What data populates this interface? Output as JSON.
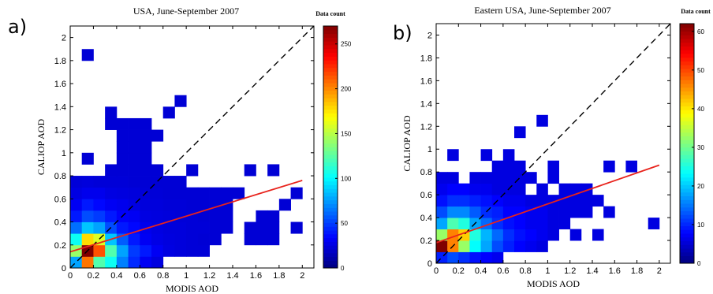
{
  "chart_data": [
    {
      "type": "heatmap",
      "panel_label": "a)",
      "title": "USA, June-September 2007",
      "xlabel": "MODIS AOD",
      "ylabel": "CALIOP AOD",
      "xlim": [
        0,
        2.1
      ],
      "ylim": [
        0,
        2.1
      ],
      "xticks": [
        "0",
        "0.2",
        "0.4",
        "0.6",
        "0.8",
        "1",
        "1.2",
        "1.4",
        "1.6",
        "1.8",
        "2"
      ],
      "yticks": [
        "0",
        "0.2",
        "0.4",
        "0.6",
        "0.8",
        "1",
        "1.2",
        "1.4",
        "1.6",
        "1.8",
        "2"
      ],
      "bin_size": 0.1,
      "colorbar": {
        "label": "Data count",
        "min": 0,
        "max": 270,
        "ticks": [
          "0",
          "50",
          "100",
          "150",
          "200",
          "250"
        ]
      },
      "cells": [
        [
          0.05,
          0.05,
          60
        ],
        [
          0.15,
          0.05,
          200
        ],
        [
          0.25,
          0.05,
          110
        ],
        [
          0.35,
          0.05,
          90
        ],
        [
          0.45,
          0.05,
          50
        ],
        [
          0.55,
          0.05,
          25
        ],
        [
          0.65,
          0.05,
          10
        ],
        [
          0.75,
          0.05,
          4
        ],
        [
          0.05,
          0.15,
          130
        ],
        [
          0.15,
          0.15,
          270
        ],
        [
          0.25,
          0.15,
          210
        ],
        [
          0.35,
          0.15,
          110
        ],
        [
          0.45,
          0.15,
          60
        ],
        [
          0.55,
          0.15,
          30
        ],
        [
          0.65,
          0.15,
          20
        ],
        [
          0.75,
          0.15,
          10
        ],
        [
          0.85,
          0.15,
          5
        ],
        [
          0.95,
          0.15,
          3
        ],
        [
          1.05,
          0.15,
          2
        ],
        [
          1.15,
          0.15,
          2
        ],
        [
          0.05,
          0.25,
          90
        ],
        [
          0.15,
          0.25,
          170
        ],
        [
          0.25,
          0.25,
          150
        ],
        [
          0.35,
          0.25,
          70
        ],
        [
          0.45,
          0.25,
          40
        ],
        [
          0.55,
          0.25,
          20
        ],
        [
          0.65,
          0.25,
          10
        ],
        [
          0.75,
          0.25,
          6
        ],
        [
          0.85,
          0.25,
          4
        ],
        [
          0.95,
          0.25,
          3
        ],
        [
          1.05,
          0.25,
          2
        ],
        [
          1.15,
          0.25,
          1
        ],
        [
          1.25,
          0.25,
          1
        ],
        [
          1.55,
          0.25,
          1
        ],
        [
          1.65,
          0.25,
          1
        ],
        [
          1.75,
          0.25,
          1
        ],
        [
          0.05,
          0.35,
          45
        ],
        [
          0.15,
          0.35,
          70
        ],
        [
          0.25,
          0.35,
          60
        ],
        [
          0.35,
          0.35,
          35
        ],
        [
          0.45,
          0.35,
          20
        ],
        [
          0.55,
          0.35,
          15
        ],
        [
          0.65,
          0.35,
          8
        ],
        [
          0.75,
          0.35,
          5
        ],
        [
          0.85,
          0.35,
          3
        ],
        [
          0.95,
          0.35,
          3
        ],
        [
          1.05,
          0.35,
          2
        ],
        [
          1.15,
          0.35,
          2
        ],
        [
          1.25,
          0.35,
          1
        ],
        [
          1.35,
          0.35,
          1
        ],
        [
          1.55,
          0.35,
          1
        ],
        [
          1.65,
          0.35,
          1
        ],
        [
          1.75,
          0.35,
          1
        ],
        [
          1.95,
          0.35,
          1
        ],
        [
          0.05,
          0.45,
          20
        ],
        [
          0.15,
          0.45,
          35
        ],
        [
          0.25,
          0.45,
          30
        ],
        [
          0.35,
          0.45,
          20
        ],
        [
          0.45,
          0.45,
          12
        ],
        [
          0.55,
          0.45,
          10
        ],
        [
          0.65,
          0.45,
          5
        ],
        [
          0.75,
          0.45,
          4
        ],
        [
          0.85,
          0.45,
          3
        ],
        [
          0.95,
          0.45,
          2
        ],
        [
          1.05,
          0.45,
          2
        ],
        [
          1.15,
          0.45,
          1
        ],
        [
          1.25,
          0.45,
          1
        ],
        [
          1.35,
          0.45,
          1
        ],
        [
          1.65,
          0.45,
          1
        ],
        [
          1.75,
          0.45,
          1
        ],
        [
          0.05,
          0.55,
          10
        ],
        [
          0.15,
          0.55,
          20
        ],
        [
          0.25,
          0.55,
          15
        ],
        [
          0.35,
          0.55,
          10
        ],
        [
          0.45,
          0.55,
          8
        ],
        [
          0.55,
          0.55,
          5
        ],
        [
          0.65,
          0.55,
          3
        ],
        [
          0.75,
          0.55,
          3
        ],
        [
          0.85,
          0.55,
          2
        ],
        [
          0.95,
          0.55,
          2
        ],
        [
          1.05,
          0.55,
          1
        ],
        [
          1.15,
          0.55,
          1
        ],
        [
          1.25,
          0.55,
          1
        ],
        [
          1.35,
          0.55,
          1
        ],
        [
          1.85,
          0.55,
          1
        ],
        [
          0.05,
          0.65,
          5
        ],
        [
          0.15,
          0.65,
          8
        ],
        [
          0.25,
          0.65,
          8
        ],
        [
          0.35,
          0.65,
          5
        ],
        [
          0.45,
          0.65,
          4
        ],
        [
          0.55,
          0.65,
          3
        ],
        [
          0.65,
          0.65,
          2
        ],
        [
          0.75,
          0.65,
          2
        ],
        [
          0.85,
          0.65,
          1
        ],
        [
          0.95,
          0.65,
          1
        ],
        [
          1.05,
          0.65,
          1
        ],
        [
          1.15,
          0.65,
          1
        ],
        [
          1.25,
          0.65,
          1
        ],
        [
          1.35,
          0.65,
          1
        ],
        [
          1.45,
          0.65,
          1
        ],
        [
          1.95,
          0.65,
          1
        ],
        [
          0.05,
          0.75,
          2
        ],
        [
          0.15,
          0.75,
          3
        ],
        [
          0.25,
          0.75,
          2
        ],
        [
          0.35,
          0.75,
          2
        ],
        [
          0.45,
          0.75,
          2
        ],
        [
          0.55,
          0.75,
          1
        ],
        [
          0.65,
          0.75,
          1
        ],
        [
          0.75,
          0.75,
          1
        ],
        [
          0.85,
          0.75,
          1
        ],
        [
          0.95,
          0.75,
          1
        ],
        [
          0.35,
          0.85,
          1
        ],
        [
          0.45,
          0.85,
          1
        ],
        [
          0.55,
          0.85,
          1
        ],
        [
          0.65,
          0.85,
          1
        ],
        [
          0.75,
          0.85,
          1
        ],
        [
          1.05,
          0.85,
          1
        ],
        [
          1.55,
          0.85,
          1
        ],
        [
          1.75,
          0.85,
          1
        ],
        [
          0.15,
          0.95,
          1
        ],
        [
          0.45,
          0.95,
          1
        ],
        [
          0.55,
          0.95,
          1
        ],
        [
          0.65,
          0.95,
          1
        ],
        [
          0.45,
          1.05,
          1
        ],
        [
          0.55,
          1.05,
          1
        ],
        [
          0.65,
          1.05,
          1
        ],
        [
          0.45,
          1.15,
          1
        ],
        [
          0.55,
          1.15,
          1
        ],
        [
          0.65,
          1.15,
          1
        ],
        [
          0.75,
          1.15,
          1
        ],
        [
          0.35,
          1.25,
          1
        ],
        [
          0.45,
          1.25,
          1
        ],
        [
          0.55,
          1.25,
          1
        ],
        [
          0.65,
          1.25,
          1
        ],
        [
          0.35,
          1.35,
          1
        ],
        [
          0.85,
          1.35,
          1
        ],
        [
          0.95,
          1.45,
          1
        ],
        [
          0.15,
          1.85,
          1
        ]
      ],
      "reference_line": {
        "style": "dashed",
        "color": "#000000",
        "from": [
          0,
          0
        ],
        "to": [
          2.1,
          2.1
        ]
      },
      "fit_line": {
        "color": "#e8231c",
        "from": [
          0,
          0.14
        ],
        "to": [
          2.0,
          0.76
        ]
      }
    },
    {
      "type": "heatmap",
      "panel_label": "b)",
      "title": "Eastern USA, June-September 2007",
      "xlabel": "MODIS AOD",
      "ylabel": "CALIOP AOD",
      "xlim": [
        0,
        2.1
      ],
      "ylim": [
        0,
        2.1
      ],
      "xticks": [
        "0",
        "0.2",
        "0.4",
        "0.6",
        "0.8",
        "1",
        "1.2",
        "1.4",
        "1.6",
        "1.8",
        "2"
      ],
      "yticks": [
        "0",
        "0.2",
        "0.4",
        "0.6",
        "0.8",
        "1",
        "1.2",
        "1.4",
        "1.6",
        "1.8",
        "2"
      ],
      "bin_size": 0.1,
      "colorbar": {
        "label": "Data count",
        "min": 0,
        "max": 62,
        "ticks": [
          "0",
          "10",
          "20",
          "30",
          "40",
          "50",
          "60"
        ]
      },
      "cells": [
        [
          0.05,
          0.05,
          5
        ],
        [
          0.15,
          0.05,
          8
        ],
        [
          0.25,
          0.05,
          6
        ],
        [
          0.35,
          0.05,
          4
        ],
        [
          0.45,
          0.05,
          3
        ],
        [
          0.55,
          0.05,
          2
        ],
        [
          0.05,
          0.15,
          62
        ],
        [
          0.15,
          0.15,
          45
        ],
        [
          0.25,
          0.15,
          30
        ],
        [
          0.35,
          0.15,
          20
        ],
        [
          0.45,
          0.15,
          14
        ],
        [
          0.55,
          0.15,
          8
        ],
        [
          0.65,
          0.15,
          5
        ],
        [
          0.75,
          0.15,
          3
        ],
        [
          0.85,
          0.15,
          2
        ],
        [
          0.95,
          0.15,
          1
        ],
        [
          0.05,
          0.25,
          30
        ],
        [
          0.15,
          0.25,
          45
        ],
        [
          0.25,
          0.25,
          40
        ],
        [
          0.35,
          0.25,
          22
        ],
        [
          0.45,
          0.25,
          15
        ],
        [
          0.55,
          0.25,
          10
        ],
        [
          0.65,
          0.25,
          6
        ],
        [
          0.75,
          0.25,
          4
        ],
        [
          0.85,
          0.25,
          3
        ],
        [
          0.95,
          0.25,
          2
        ],
        [
          1.05,
          0.25,
          1
        ],
        [
          1.25,
          0.25,
          1
        ],
        [
          1.45,
          0.25,
          1
        ],
        [
          0.05,
          0.35,
          14
        ],
        [
          0.15,
          0.35,
          25
        ],
        [
          0.25,
          0.35,
          22
        ],
        [
          0.35,
          0.35,
          14
        ],
        [
          0.45,
          0.35,
          10
        ],
        [
          0.55,
          0.35,
          6
        ],
        [
          0.65,
          0.35,
          4
        ],
        [
          0.75,
          0.35,
          3
        ],
        [
          0.85,
          0.35,
          2
        ],
        [
          0.95,
          0.35,
          2
        ],
        [
          1.05,
          0.35,
          1
        ],
        [
          1.15,
          0.35,
          1
        ],
        [
          1.95,
          0.35,
          1
        ],
        [
          0.05,
          0.45,
          8
        ],
        [
          0.15,
          0.45,
          12
        ],
        [
          0.25,
          0.45,
          12
        ],
        [
          0.35,
          0.45,
          9
        ],
        [
          0.45,
          0.45,
          6
        ],
        [
          0.55,
          0.45,
          5
        ],
        [
          0.65,
          0.45,
          3
        ],
        [
          0.75,
          0.45,
          3
        ],
        [
          0.85,
          0.45,
          2
        ],
        [
          0.95,
          0.45,
          2
        ],
        [
          1.05,
          0.45,
          1
        ],
        [
          1.15,
          0.45,
          1
        ],
        [
          1.25,
          0.45,
          1
        ],
        [
          1.35,
          0.45,
          1
        ],
        [
          1.55,
          0.45,
          1
        ],
        [
          0.05,
          0.55,
          4
        ],
        [
          0.15,
          0.55,
          6
        ],
        [
          0.25,
          0.55,
          6
        ],
        [
          0.35,
          0.55,
          5
        ],
        [
          0.45,
          0.55,
          4
        ],
        [
          0.55,
          0.55,
          3
        ],
        [
          0.65,
          0.55,
          2
        ],
        [
          0.75,
          0.55,
          2
        ],
        [
          0.85,
          0.55,
          1
        ],
        [
          0.95,
          0.55,
          1
        ],
        [
          1.05,
          0.55,
          1
        ],
        [
          1.15,
          0.55,
          1
        ],
        [
          1.25,
          0.55,
          1
        ],
        [
          1.35,
          0.55,
          1
        ],
        [
          1.45,
          0.55,
          1
        ],
        [
          0.05,
          0.65,
          2
        ],
        [
          0.15,
          0.65,
          3
        ],
        [
          0.25,
          0.65,
          3
        ],
        [
          0.35,
          0.65,
          2
        ],
        [
          0.45,
          0.65,
          2
        ],
        [
          0.55,
          0.65,
          1
        ],
        [
          0.65,
          0.65,
          1
        ],
        [
          0.75,
          0.65,
          1
        ],
        [
          0.95,
          0.65,
          1
        ],
        [
          1.15,
          0.65,
          1
        ],
        [
          1.25,
          0.65,
          1
        ],
        [
          1.35,
          0.65,
          1
        ],
        [
          0.05,
          0.75,
          1
        ],
        [
          0.15,
          0.75,
          1
        ],
        [
          0.35,
          0.75,
          1
        ],
        [
          0.45,
          0.75,
          1
        ],
        [
          0.55,
          0.75,
          1
        ],
        [
          0.65,
          0.75,
          1
        ],
        [
          0.75,
          0.75,
          1
        ],
        [
          0.85,
          0.75,
          1
        ],
        [
          1.05,
          0.75,
          1
        ],
        [
          0.55,
          0.85,
          1
        ],
        [
          0.65,
          0.85,
          1
        ],
        [
          0.75,
          0.85,
          1
        ],
        [
          1.05,
          0.85,
          1
        ],
        [
          1.55,
          0.85,
          1
        ],
        [
          1.75,
          0.85,
          1
        ],
        [
          0.15,
          0.95,
          1
        ],
        [
          0.45,
          0.95,
          1
        ],
        [
          0.65,
          0.95,
          1
        ],
        [
          0.75,
          1.15,
          1
        ],
        [
          0.95,
          1.25,
          1
        ]
      ],
      "reference_line": {
        "style": "dashed",
        "color": "#000000",
        "from": [
          0,
          0
        ],
        "to": [
          2.1,
          2.1
        ]
      },
      "fit_line": {
        "color": "#e8231c",
        "from": [
          0,
          0.18
        ],
        "to": [
          2.0,
          0.86
        ]
      }
    }
  ]
}
